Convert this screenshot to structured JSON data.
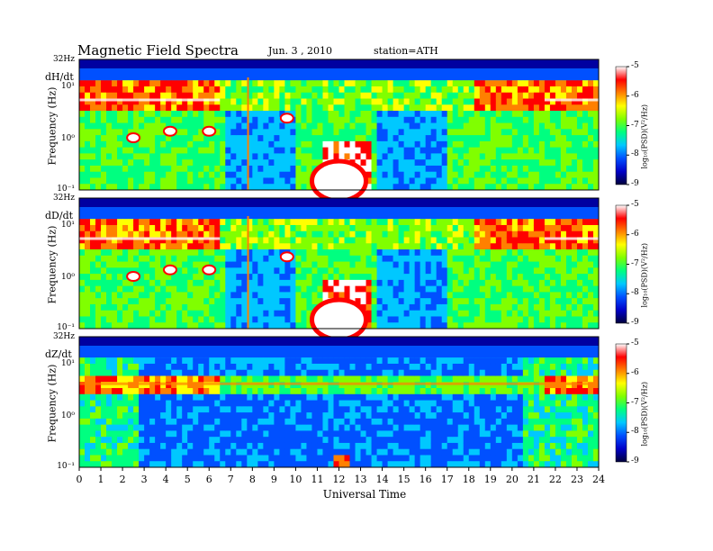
{
  "header": {
    "title": "Magnetic  Field  Spectra",
    "date": "Jun.  3  , 2010",
    "station": "station=ATH"
  },
  "colors": {
    "scale": [
      "#00003c",
      "#0000c8",
      "#0050ff",
      "#00c8ff",
      "#00ff80",
      "#80ff00",
      "#ffff00",
      "#ff8000",
      "#ff0000",
      "#ffffff"
    ]
  },
  "chart_data": [
    {
      "type": "heatmap",
      "panel": "dH/dt",
      "ylabel": "Frequency  (Hz)",
      "yticks": [
        "32Hz",
        "10¹",
        "10⁰",
        "10⁻¹"
      ],
      "x_range": [
        0,
        24
      ],
      "colorbar": {
        "label": "log₁₀(PSD)(V²/Hz)",
        "ticks": [
          "-5",
          "-6",
          "-7",
          "-8",
          "-9"
        ]
      }
    },
    {
      "type": "heatmap",
      "panel": "dD/dt",
      "ylabel": "Frequency  (Hz)",
      "yticks": [
        "32Hz",
        "10¹",
        "10⁰",
        "10⁻¹"
      ],
      "x_range": [
        0,
        24
      ],
      "colorbar": {
        "label": "log₁₀(PSD)(V²/Hz)",
        "ticks": [
          "-5",
          "-6",
          "-7",
          "-8",
          "-9"
        ]
      }
    },
    {
      "type": "heatmap",
      "panel": "dZ/dt",
      "ylabel": "Frequency  (Hz)",
      "yticks": [
        "32Hz",
        "10¹",
        "10⁰",
        "10⁻¹"
      ],
      "x_range": [
        0,
        24
      ],
      "xticks": [
        "0",
        "1",
        "2",
        "3",
        "4",
        "5",
        "6",
        "7",
        "8",
        "9",
        "10",
        "11",
        "12",
        "13",
        "14",
        "15",
        "16",
        "17",
        "18",
        "19",
        "20",
        "21",
        "22",
        "23",
        "24"
      ],
      "xlabel": "Universal  Time",
      "colorbar": {
        "label": "log₁₀(PSD)(V²/Hz)",
        "ticks": [
          "-5",
          "-6",
          "-7",
          "-8",
          "-9"
        ]
      }
    }
  ]
}
